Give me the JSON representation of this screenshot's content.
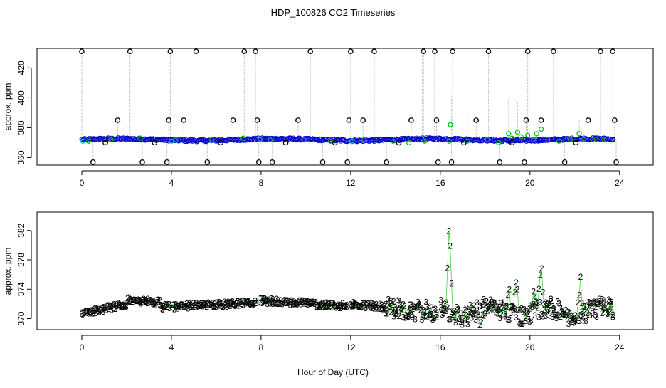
{
  "title": "HDP_100826  CO2 Timeseries",
  "xlabel": "Hour of Day (UTC)",
  "chart_data": [
    {
      "type": "scatter",
      "panel": "top",
      "ylabel": "approx. ppm",
      "xlim": [
        -2,
        25.5
      ],
      "ylim": [
        355,
        433
      ],
      "xticks": [
        0,
        4,
        8,
        12,
        16,
        20,
        24
      ],
      "yticks": [
        360,
        380,
        400,
        420
      ],
      "series": [
        {
          "name": "",
          "marker": "circle",
          "color": "#000000",
          "dropline_color": "#b0b0b0",
          "x": [
            0.0,
            0.5,
            1.05,
            1.6,
            2.15,
            2.7,
            3.25,
            3.8,
            3.88,
            3.95,
            4.55,
            5.1,
            5.6,
            6.2,
            6.75,
            7.25,
            7.75,
            7.83,
            7.9,
            8.5,
            9.1,
            9.65,
            10.2,
            10.75,
            11.3,
            11.85,
            11.92,
            12.0,
            12.55,
            13.05,
            13.6,
            14.15,
            14.7,
            15.25,
            15.75,
            15.83,
            15.9,
            16.5,
            16.55,
            17.05,
            17.6,
            18.15,
            18.65,
            19.2,
            19.75,
            19.83,
            19.9,
            20.5,
            21.05,
            21.55,
            22.05,
            22.6,
            23.15,
            23.7,
            23.78,
            23.85
          ],
          "y": [
            431,
            357,
            370,
            385,
            431,
            357,
            370,
            357,
            385,
            431,
            385,
            431,
            357,
            370,
            385,
            431,
            431,
            385,
            357,
            357,
            370,
            385,
            431,
            357,
            370,
            357,
            385,
            431,
            385,
            431,
            357,
            370,
            385,
            431,
            431,
            385,
            357,
            357,
            431,
            370,
            385,
            431,
            357,
            370,
            357,
            385,
            431,
            385,
            431,
            357,
            370,
            385,
            431,
            431,
            385,
            357
          ]
        },
        {
          "name": "",
          "marker": "circle",
          "color": "#00bb00",
          "x": [
            0.3,
            1.3,
            2.6,
            4.2,
            5.8,
            7.2,
            8.4,
            9.9,
            11.1,
            12.6,
            13.9,
            14.6,
            15.3,
            16.4,
            16.45,
            17.2,
            18.1,
            18.6,
            19.05,
            19.2,
            19.45,
            19.6,
            19.9,
            20.15,
            20.3,
            20.5,
            20.8,
            21.3,
            21.8,
            22.2,
            22.4,
            22.8,
            23.3
          ],
          "y": [
            371,
            372,
            373,
            372,
            372,
            373,
            372,
            372,
            371,
            372,
            371,
            370,
            371,
            371,
            382,
            371,
            372,
            370,
            376,
            373,
            377,
            374,
            375,
            372,
            376,
            379,
            372,
            371,
            372,
            376,
            372,
            372,
            372
          ]
        },
        {
          "name": "",
          "marker": "circle",
          "color": "#0000cc",
          "x_range": [
            0.0,
            23.75
          ],
          "baseline": 372
        },
        {
          "name": "",
          "marker": "circle",
          "color": "#00cccc",
          "x": [
            0.05,
            4.0,
            7.95,
            12.05
          ],
          "y": [
            371,
            371,
            372,
            371
          ]
        }
      ],
      "spike_lines": [
        {
          "x": 15.2,
          "y_top": 431
        },
        {
          "x": 16.5,
          "y_top": 402
        },
        {
          "x": 17.2,
          "y_top": 392
        },
        {
          "x": 19.05,
          "y_top": 400
        },
        {
          "x": 19.45,
          "y_top": 397
        },
        {
          "x": 20.5,
          "y_top": 421
        },
        {
          "x": 22.2,
          "y_top": 385
        }
      ]
    },
    {
      "type": "scatter",
      "panel": "bottom",
      "ylabel": "approx. ppm",
      "xlim": [
        -2,
        25.5
      ],
      "ylim": [
        368.5,
        384.5
      ],
      "xticks": [
        0,
        4,
        8,
        12,
        16,
        20,
        24
      ],
      "yticks": [
        370,
        374,
        378,
        382
      ],
      "series": [
        {
          "name": "",
          "marker": "3",
          "color": "#0000cc",
          "x_range": [
            0.0,
            23.75
          ]
        },
        {
          "name": "",
          "marker": "2",
          "color": "#00bb00",
          "x_range": [
            0.0,
            23.75
          ],
          "peaks": [
            {
              "x": 16.4,
              "y": 383.0
            },
            {
              "x": 19.05,
              "y": 374.5
            },
            {
              "x": 19.4,
              "y": 375.5
            },
            {
              "x": 20.5,
              "y": 377.5
            },
            {
              "x": 20.15,
              "y": 373.5
            },
            {
              "x": 22.25,
              "y": 375.0
            },
            {
              "x": 17.8,
              "y": 369.5
            }
          ]
        }
      ]
    }
  ]
}
